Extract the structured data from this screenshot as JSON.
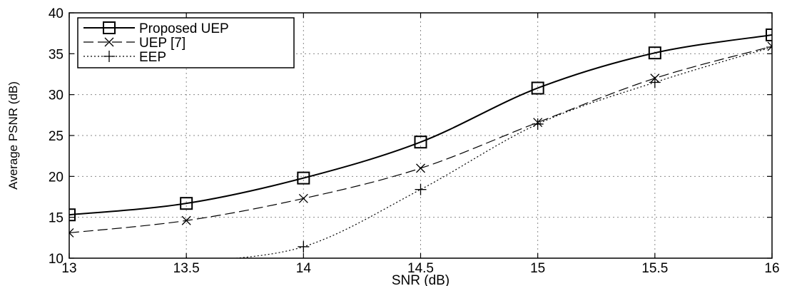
{
  "chart_data": {
    "type": "line",
    "xlabel": "SNR (dB)",
    "ylabel": "Average PSNR (dB)",
    "xlim": [
      13,
      16
    ],
    "ylim": [
      10,
      40
    ],
    "xticks": [
      13,
      13.5,
      14,
      14.5,
      15,
      15.5,
      16
    ],
    "xtick_labels": [
      "13",
      "13.5",
      "14",
      "14.5",
      "15",
      "15.5",
      "16"
    ],
    "yticks": [
      10,
      15,
      20,
      25,
      30,
      35,
      40
    ],
    "ytick_labels": [
      "10",
      "15",
      "20",
      "25",
      "30",
      "35",
      "40"
    ],
    "grid": true,
    "legend_position": "top-left",
    "series": [
      {
        "name": "Proposed UEP",
        "marker": "square",
        "line_style": "solid",
        "color": "#000000",
        "x": [
          13,
          13.5,
          14,
          14.5,
          15,
          15.5,
          16
        ],
        "y": [
          15.3,
          16.7,
          19.8,
          24.2,
          30.8,
          35.1,
          37.3
        ]
      },
      {
        "name": "UEP [7]",
        "marker": "x",
        "line_style": "dashed",
        "color": "#000000",
        "x": [
          13,
          13.5,
          14,
          14.5,
          15,
          15.5,
          16
        ],
        "y": [
          13.1,
          14.6,
          17.3,
          21.0,
          26.6,
          32.0,
          35.9
        ]
      },
      {
        "name": "EEP",
        "marker": "plus",
        "line_style": "dotted",
        "color": "#000000",
        "x": [
          13.5,
          14,
          14.5,
          15,
          15.5,
          16
        ],
        "y": [
          9.5,
          11.4,
          18.4,
          26.4,
          31.5,
          35.8
        ]
      }
    ]
  }
}
